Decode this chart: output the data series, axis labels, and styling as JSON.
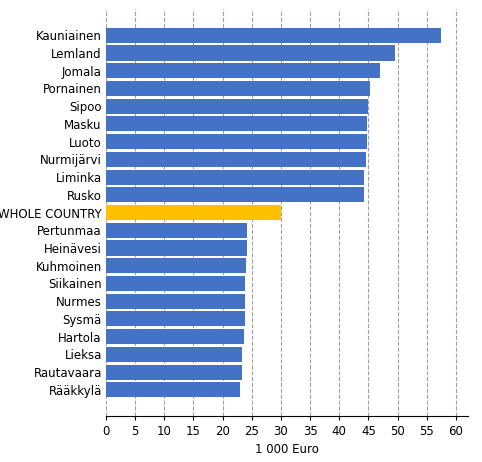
{
  "categories": [
    "Kauniainen",
    "Lemland",
    "Jomala",
    "Pornainen",
    "Sipoo",
    "Masku",
    "Luoto",
    "Nurmijärvi",
    "Liminka",
    "Rusko",
    "WHOLE COUNTRY",
    "Pertunmaa",
    "Heinävesi",
    "Kuhmoinen",
    "Siikainen",
    "Nurmes",
    "Sysmä",
    "Hartola",
    "Lieksa",
    "Rautavaara",
    "Rääkkylä"
  ],
  "values": [
    57.5,
    49.5,
    47.0,
    45.2,
    44.9,
    44.8,
    44.7,
    44.6,
    44.3,
    44.2,
    30.0,
    24.2,
    24.1,
    24.0,
    23.9,
    23.8,
    23.8,
    23.6,
    23.4,
    23.3,
    22.9
  ],
  "bar_colors": [
    "#4472C4",
    "#4472C4",
    "#4472C4",
    "#4472C4",
    "#4472C4",
    "#4472C4",
    "#4472C4",
    "#4472C4",
    "#4472C4",
    "#4472C4",
    "#FFC000",
    "#4472C4",
    "#4472C4",
    "#4472C4",
    "#4472C4",
    "#4472C4",
    "#4472C4",
    "#4472C4",
    "#4472C4",
    "#4472C4",
    "#4472C4"
  ],
  "xlabel": "1 000 Euro",
  "xlim": [
    0,
    62
  ],
  "xticks": [
    0,
    5,
    10,
    15,
    20,
    25,
    30,
    35,
    40,
    45,
    50,
    55,
    60
  ],
  "background_color": "#FFFFFF",
  "grid_color": "#A0A0A0",
  "bar_height": 0.85,
  "label_fontsize": 8.5,
  "tick_fontsize": 8.5
}
